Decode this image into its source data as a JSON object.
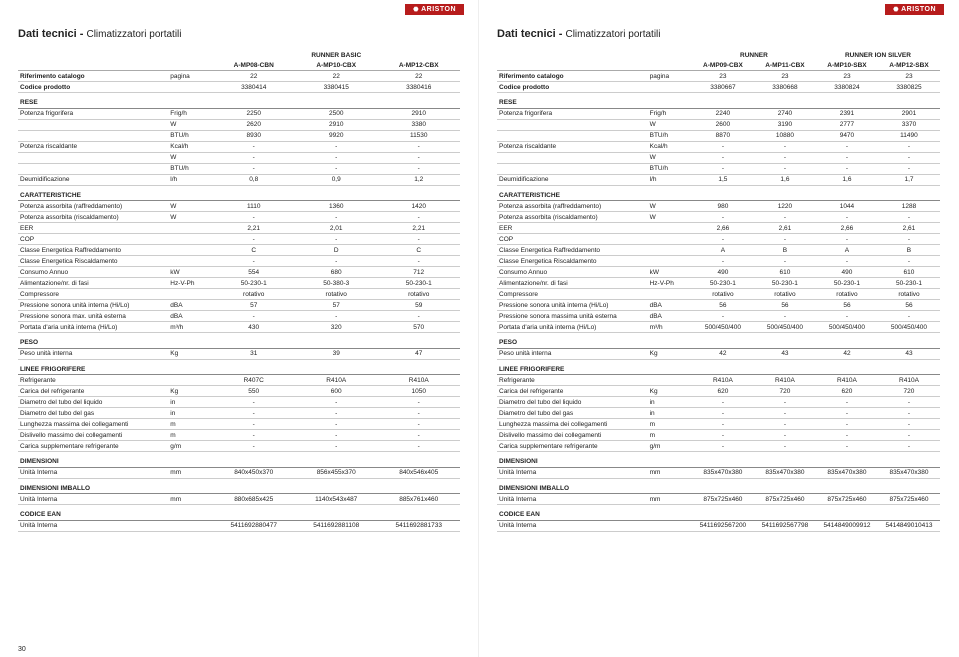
{
  "brand": "ARISTON",
  "title_bold": "Dati tecnici - ",
  "title_sub": "Climatizzatori portatili",
  "page_number_left": "30",
  "left": {
    "group_labels": [
      "RUNNER BASIC"
    ],
    "models": [
      "A-MP08-CBN",
      "A-MP10-CBX",
      "A-MP12-CBX"
    ],
    "header_rows": [
      {
        "label": "Riferimento catalogo",
        "unit": "pagina",
        "values": [
          "22",
          "22",
          "22"
        ],
        "bold": true
      },
      {
        "label": "Codice prodotto",
        "unit": "",
        "values": [
          "3380414",
          "3380415",
          "3380416"
        ],
        "bold": true
      }
    ],
    "groups": [
      {
        "title": "RESE",
        "rows": [
          {
            "label": "Potenza frigorifera",
            "unit": "Frig/h",
            "values": [
              "2250",
              "2500",
              "2910"
            ]
          },
          {
            "label": "",
            "unit": "W",
            "values": [
              "2620",
              "2910",
              "3380"
            ]
          },
          {
            "label": "",
            "unit": "BTU/h",
            "values": [
              "8930",
              "9920",
              "11530"
            ]
          },
          {
            "label": "Potenza riscaldante",
            "unit": "Kcal/h",
            "values": [
              "-",
              "-",
              "-"
            ]
          },
          {
            "label": "",
            "unit": "W",
            "values": [
              "-",
              "-",
              "-"
            ]
          },
          {
            "label": "",
            "unit": "BTU/h",
            "values": [
              "-",
              "-",
              "-"
            ]
          },
          {
            "label": "Deumidificazione",
            "unit": "l/h",
            "values": [
              "0,8",
              "0,9",
              "1,2"
            ]
          }
        ]
      },
      {
        "title": "CARATTERISTICHE",
        "rows": [
          {
            "label": "Potenza assorbita (raffreddamento)",
            "unit": "W",
            "values": [
              "1110",
              "1360",
              "1420"
            ]
          },
          {
            "label": "Potenza assorbita (riscaldamento)",
            "unit": "W",
            "values": [
              "-",
              "-",
              "-"
            ]
          },
          {
            "label": "EER",
            "unit": "",
            "values": [
              "2,21",
              "2,01",
              "2,21"
            ]
          },
          {
            "label": "COP",
            "unit": "",
            "values": [
              "-",
              "-",
              "-"
            ]
          },
          {
            "label": "Classe Energetica Raffreddamento",
            "unit": "",
            "values": [
              "C",
              "D",
              "C"
            ]
          },
          {
            "label": "Classe Energetica Riscaldamento",
            "unit": "",
            "values": [
              "-",
              "-",
              "-"
            ]
          },
          {
            "label": "Consumo Annuo",
            "unit": "kW",
            "values": [
              "554",
              "680",
              "712"
            ]
          },
          {
            "label": "Alimentazione/nr. di fasi",
            "unit": "Hz-V-Ph",
            "values": [
              "50-230-1",
              "50-380-3",
              "50-230-1"
            ]
          },
          {
            "label": "Compressore",
            "unit": "",
            "values": [
              "rotativo",
              "rotativo",
              "rotativo"
            ]
          },
          {
            "label": "Pressione sonora unità interna (Hi/Lo)",
            "unit": "dBA",
            "values": [
              "57",
              "57",
              "59"
            ]
          },
          {
            "label": "Pressione sonora max. unità esterna",
            "unit": "dBA",
            "values": [
              "-",
              "-",
              "-"
            ]
          },
          {
            "label": "Portata d'aria unità interna (Hi/Lo)",
            "unit": "m³/h",
            "values": [
              "430",
              "320",
              "570"
            ]
          }
        ]
      },
      {
        "title": "PESO",
        "rows": [
          {
            "label": "Peso unità interna",
            "unit": "Kg",
            "values": [
              "31",
              "39",
              "47"
            ]
          }
        ]
      },
      {
        "title": "LINEE FRIGORIFERE",
        "rows": [
          {
            "label": "Refrigerante",
            "unit": "",
            "values": [
              "R407C",
              "R410A",
              "R410A"
            ]
          },
          {
            "label": "Carica del refrigerante",
            "unit": "Kg",
            "values": [
              "550",
              "600",
              "1050"
            ]
          },
          {
            "label": "Diametro del tubo del liquido",
            "unit": "in",
            "values": [
              "-",
              "-",
              "-"
            ]
          },
          {
            "label": "Diametro del tubo del gas",
            "unit": "in",
            "values": [
              "-",
              "-",
              "-"
            ]
          },
          {
            "label": "Lunghezza massima dei collegamenti",
            "unit": "m",
            "values": [
              "-",
              "-",
              "-"
            ]
          },
          {
            "label": "Dislivello massimo dei collegamenti",
            "unit": "m",
            "values": [
              "-",
              "-",
              "-"
            ]
          },
          {
            "label": "Carica supplementare refrigerante",
            "unit": "g/m",
            "values": [
              "-",
              "-",
              "-"
            ]
          }
        ]
      },
      {
        "title": "DIMENSIONI",
        "rows": [
          {
            "label": "Unità Interna",
            "unit": "mm",
            "values": [
              "840x450x370",
              "856x455x370",
              "840x546x405"
            ]
          }
        ]
      },
      {
        "title": "DIMENSIONI IMBALLO",
        "rows": [
          {
            "label": "Unità Interna",
            "unit": "mm",
            "values": [
              "880x685x425",
              "1140x543x487",
              "885x761x460"
            ]
          }
        ]
      },
      {
        "title": "CODICE EAN",
        "rows": [
          {
            "label": "Unità Interna",
            "unit": "",
            "values": [
              "5411692880477",
              "5411692881108",
              "5411692881733"
            ]
          }
        ]
      }
    ]
  },
  "right": {
    "group_labels": [
      "RUNNER",
      "RUNNER ION SILVER"
    ],
    "models": [
      "A-MP09-CBX",
      "A-MP11-CBX",
      "A-MP10-SBX",
      "A-MP12-SBX"
    ],
    "header_rows": [
      {
        "label": "Riferimento catalogo",
        "unit": "pagina",
        "values": [
          "23",
          "23",
          "23",
          "23"
        ],
        "bold": true
      },
      {
        "label": "Codice prodotto",
        "unit": "",
        "values": [
          "3380667",
          "3380668",
          "3380824",
          "3380825"
        ],
        "bold": true
      }
    ],
    "groups": [
      {
        "title": "RESE",
        "rows": [
          {
            "label": "Potenza frigorifera",
            "unit": "Frig/h",
            "values": [
              "2240",
              "2740",
              "2391",
              "2901"
            ]
          },
          {
            "label": "",
            "unit": "W",
            "values": [
              "2600",
              "3190",
              "2777",
              "3370"
            ]
          },
          {
            "label": "",
            "unit": "BTU/h",
            "values": [
              "8870",
              "10880",
              "9470",
              "11490"
            ]
          },
          {
            "label": "Potenza riscaldante",
            "unit": "Kcal/h",
            "values": [
              "-",
              "-",
              "-",
              "-"
            ]
          },
          {
            "label": "",
            "unit": "W",
            "values": [
              "-",
              "-",
              "-",
              "-"
            ]
          },
          {
            "label": "",
            "unit": "BTU/h",
            "values": [
              "-",
              "-",
              "-",
              "-"
            ]
          },
          {
            "label": "Deumidificazione",
            "unit": "l/h",
            "values": [
              "1,5",
              "1,6",
              "1,6",
              "1,7"
            ]
          }
        ]
      },
      {
        "title": "CARATTERISTICHE",
        "rows": [
          {
            "label": "Potenza assorbita (raffreddamento)",
            "unit": "W",
            "values": [
              "980",
              "1220",
              "1044",
              "1288"
            ]
          },
          {
            "label": "Potenza assorbita (riscaldamento)",
            "unit": "W",
            "values": [
              "-",
              "-",
              "-",
              "-"
            ]
          },
          {
            "label": "EER",
            "unit": "",
            "values": [
              "2,66",
              "2,61",
              "2,66",
              "2,61"
            ]
          },
          {
            "label": "COP",
            "unit": "",
            "values": [
              "-",
              "-",
              "-",
              "-"
            ]
          },
          {
            "label": "Classe Energetica Raffreddamento",
            "unit": "",
            "values": [
              "A",
              "B",
              "A",
              "B"
            ]
          },
          {
            "label": "Classe Energetica Riscaldamento",
            "unit": "",
            "values": [
              "-",
              "-",
              "-",
              "-"
            ]
          },
          {
            "label": "Consumo Annuo",
            "unit": "kW",
            "values": [
              "490",
              "610",
              "490",
              "610"
            ]
          },
          {
            "label": "Alimentazione/nr. di fasi",
            "unit": "Hz-V-Ph",
            "values": [
              "50-230-1",
              "50-230-1",
              "50-230-1",
              "50-230-1"
            ]
          },
          {
            "label": "Compressore",
            "unit": "",
            "values": [
              "rotativo",
              "rotativo",
              "rotativo",
              "rotativo"
            ]
          },
          {
            "label": "Pressione sonora unità interna (Hi/Lo)",
            "unit": "dBA",
            "values": [
              "56",
              "56",
              "56",
              "56"
            ]
          },
          {
            "label": "Pressione sonora massima unità esterna",
            "unit": "dBA",
            "values": [
              "-",
              "-",
              "-",
              "-"
            ]
          },
          {
            "label": "Portata d'aria unità interna (Hi/Lo)",
            "unit": "m³/h",
            "values": [
              "500/450/400",
              "500/450/400",
              "500/450/400",
              "500/450/400"
            ]
          }
        ]
      },
      {
        "title": "PESO",
        "rows": [
          {
            "label": "Peso unità interna",
            "unit": "Kg",
            "values": [
              "42",
              "43",
              "42",
              "43"
            ]
          }
        ]
      },
      {
        "title": "LINEE FRIGORIFERE",
        "rows": [
          {
            "label": "Refrigerante",
            "unit": "",
            "values": [
              "R410A",
              "R410A",
              "R410A",
              "R410A"
            ]
          },
          {
            "label": "Carica del refrigerante",
            "unit": "Kg",
            "values": [
              "620",
              "720",
              "620",
              "720"
            ]
          },
          {
            "label": "Diametro del tubo del liquido",
            "unit": "in",
            "values": [
              "-",
              "-",
              "-",
              "-"
            ]
          },
          {
            "label": "Diametro del tubo del gas",
            "unit": "in",
            "values": [
              "-",
              "-",
              "-",
              "-"
            ]
          },
          {
            "label": "Lunghezza massima dei collegamenti",
            "unit": "m",
            "values": [
              "-",
              "-",
              "-",
              "-"
            ]
          },
          {
            "label": "Dislivello massimo dei collegamenti",
            "unit": "m",
            "values": [
              "-",
              "-",
              "-",
              "-"
            ]
          },
          {
            "label": "Carica supplementare refrigerante",
            "unit": "g/m",
            "values": [
              "-",
              "-",
              "-",
              "-"
            ]
          }
        ]
      },
      {
        "title": "DIMENSIONI",
        "rows": [
          {
            "label": "Unità Interna",
            "unit": "mm",
            "values": [
              "835x470x380",
              "835x470x380",
              "835x470x380",
              "835x470x380"
            ]
          }
        ]
      },
      {
        "title": "DIMENSIONI IMBALLO",
        "rows": [
          {
            "label": "Unità Interna",
            "unit": "mm",
            "values": [
              "875x725x460",
              "875x725x460",
              "875x725x460",
              "875x725x460"
            ]
          }
        ]
      },
      {
        "title": "CODICE EAN",
        "rows": [
          {
            "label": "Unità Interna",
            "unit": "",
            "values": [
              "5411692567200",
              "5411692567798",
              "5414849009912",
              "5414849010413"
            ]
          }
        ]
      }
    ]
  }
}
